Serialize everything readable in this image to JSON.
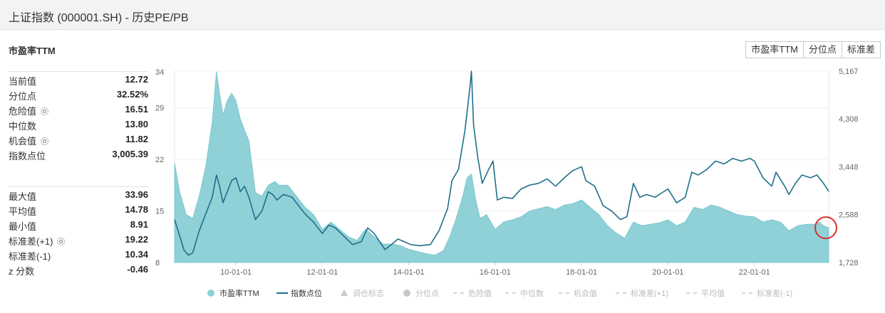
{
  "window": {
    "title": "上证指数 (000001.SH) - 历史PE/PB"
  },
  "section": {
    "title": "市盈率TTM"
  },
  "tabs": [
    "市盈率TTM",
    "分位点",
    "标准差"
  ],
  "stats_top": [
    {
      "label": "当前值",
      "value": "12.72",
      "gear": false
    },
    {
      "label": "分位点",
      "value": "32.52%",
      "gear": false
    },
    {
      "label": "危险值",
      "value": "16.51",
      "gear": true
    },
    {
      "label": "中位数",
      "value": "13.80",
      "gear": false
    },
    {
      "label": "机会值",
      "value": "11.82",
      "gear": true
    },
    {
      "label": "指数点位",
      "value": "3,005.39",
      "gear": false
    }
  ],
  "stats_bottom": [
    {
      "label": "最大值",
      "value": "33.96",
      "gear": false
    },
    {
      "label": "平均值",
      "value": "14.78",
      "gear": false
    },
    {
      "label": "最小值",
      "value": "8.91",
      "gear": false
    },
    {
      "label": "标准差(+1)",
      "value": "19.22",
      "gear": true
    },
    {
      "label": "标准差(-1)",
      "value": "10.34",
      "gear": false
    },
    {
      "label": "z 分数",
      "value": "-0.46",
      "gear": false
    }
  ],
  "colors": {
    "pe_fill": "#8fd1d6",
    "pe_line": "#7cc7cd",
    "index_line": "#1f6f8b",
    "highlight": "#d9302c"
  },
  "chart_data": {
    "type": "area",
    "left_axis": {
      "ticks": [
        34,
        29,
        22,
        15,
        8
      ],
      "min": 8,
      "max": 34
    },
    "right_axis": {
      "ticks": [
        "5,167",
        "4,308",
        "3,448",
        "2,588",
        "1,728"
      ],
      "min": 1728,
      "max": 5167
    },
    "x_tick_labels": [
      "10-01-01",
      "12-01-01",
      "14-01-01",
      "16-01-01",
      "18-01-01",
      "20-01-01",
      "22-01-01"
    ],
    "x_ticks_year": [
      2010,
      2012,
      2014,
      2016,
      2018,
      2020,
      2022
    ],
    "x_range": [
      2008.58,
      2023.72
    ],
    "series": [
      {
        "name": "市盈率TTM",
        "kind": "area",
        "axis": "left",
        "points": [
          [
            2008.58,
            21.5
          ],
          [
            2008.7,
            17.5
          ],
          [
            2008.85,
            14.5
          ],
          [
            2009.0,
            14.0
          ],
          [
            2009.15,
            17
          ],
          [
            2009.3,
            21
          ],
          [
            2009.45,
            27
          ],
          [
            2009.55,
            33.96
          ],
          [
            2009.62,
            31
          ],
          [
            2009.7,
            28
          ],
          [
            2009.8,
            30
          ],
          [
            2009.9,
            31
          ],
          [
            2010.0,
            30
          ],
          [
            2010.1,
            27.5
          ],
          [
            2010.2,
            26
          ],
          [
            2010.3,
            24.5
          ],
          [
            2010.45,
            17.5
          ],
          [
            2010.6,
            17
          ],
          [
            2010.75,
            18.5
          ],
          [
            2010.9,
            19
          ],
          [
            2011.0,
            18.5
          ],
          [
            2011.2,
            18.5
          ],
          [
            2011.4,
            17
          ],
          [
            2011.6,
            15.5
          ],
          [
            2011.8,
            14.5
          ],
          [
            2012.0,
            12.5
          ],
          [
            2012.2,
            13.5
          ],
          [
            2012.4,
            12.5
          ],
          [
            2012.6,
            11.5
          ],
          [
            2012.8,
            11
          ],
          [
            2013.0,
            12.5
          ],
          [
            2013.2,
            11.5
          ],
          [
            2013.4,
            10.5
          ],
          [
            2013.6,
            10.5
          ],
          [
            2013.8,
            10.3
          ],
          [
            2014.0,
            9.8
          ],
          [
            2014.2,
            9.5
          ],
          [
            2014.4,
            9.2
          ],
          [
            2014.6,
            9.0
          ],
          [
            2014.8,
            9.6
          ],
          [
            2014.95,
            11.5
          ],
          [
            2015.1,
            14
          ],
          [
            2015.25,
            17
          ],
          [
            2015.35,
            19.5
          ],
          [
            2015.45,
            20
          ],
          [
            2015.55,
            16.5
          ],
          [
            2015.65,
            14
          ],
          [
            2015.8,
            14.5
          ],
          [
            2016.0,
            12.5
          ],
          [
            2016.2,
            13.5
          ],
          [
            2016.4,
            13.8
          ],
          [
            2016.6,
            14.2
          ],
          [
            2016.8,
            15
          ],
          [
            2017.0,
            15.3
          ],
          [
            2017.2,
            15.6
          ],
          [
            2017.4,
            15.2
          ],
          [
            2017.6,
            15.8
          ],
          [
            2017.8,
            16
          ],
          [
            2018.0,
            16.5
          ],
          [
            2018.2,
            15.5
          ],
          [
            2018.4,
            14.5
          ],
          [
            2018.6,
            13
          ],
          [
            2018.8,
            12
          ],
          [
            2019.0,
            11.3
          ],
          [
            2019.2,
            13.5
          ],
          [
            2019.4,
            13
          ],
          [
            2019.6,
            13.2
          ],
          [
            2019.8,
            13.4
          ],
          [
            2020.0,
            13.8
          ],
          [
            2020.2,
            13
          ],
          [
            2020.4,
            13.5
          ],
          [
            2020.6,
            15.5
          ],
          [
            2020.8,
            15.2
          ],
          [
            2021.0,
            15.8
          ],
          [
            2021.2,
            15.5
          ],
          [
            2021.4,
            15
          ],
          [
            2021.6,
            14.5
          ],
          [
            2021.8,
            14.3
          ],
          [
            2022.0,
            14.2
          ],
          [
            2022.2,
            13.5
          ],
          [
            2022.4,
            13.8
          ],
          [
            2022.6,
            13.5
          ],
          [
            2022.8,
            12.3
          ],
          [
            2023.0,
            13
          ],
          [
            2023.2,
            13.2
          ],
          [
            2023.4,
            13.2
          ],
          [
            2023.5,
            13.5
          ],
          [
            2023.6,
            13
          ],
          [
            2023.72,
            12.72
          ]
        ]
      },
      {
        "name": "指数点位",
        "kind": "line",
        "axis": "right",
        "points": [
          [
            2008.58,
            2500
          ],
          [
            2008.7,
            2200
          ],
          [
            2008.8,
            1950
          ],
          [
            2008.9,
            1860
          ],
          [
            2009.0,
            1900
          ],
          [
            2009.15,
            2300
          ],
          [
            2009.3,
            2600
          ],
          [
            2009.45,
            2900
          ],
          [
            2009.55,
            3300
          ],
          [
            2009.62,
            3100
          ],
          [
            2009.7,
            2800
          ],
          [
            2009.8,
            3000
          ],
          [
            2009.9,
            3200
          ],
          [
            2010.0,
            3250
          ],
          [
            2010.1,
            3000
          ],
          [
            2010.2,
            3100
          ],
          [
            2010.3,
            2900
          ],
          [
            2010.45,
            2500
          ],
          [
            2010.6,
            2650
          ],
          [
            2010.75,
            3000
          ],
          [
            2010.85,
            2950
          ],
          [
            2010.95,
            2850
          ],
          [
            2011.1,
            2950
          ],
          [
            2011.3,
            2900
          ],
          [
            2011.45,
            2750
          ],
          [
            2011.6,
            2600
          ],
          [
            2011.8,
            2450
          ],
          [
            2012.0,
            2250
          ],
          [
            2012.15,
            2400
          ],
          [
            2012.3,
            2350
          ],
          [
            2012.5,
            2200
          ],
          [
            2012.7,
            2050
          ],
          [
            2012.9,
            2100
          ],
          [
            2013.05,
            2350
          ],
          [
            2013.2,
            2250
          ],
          [
            2013.45,
            1960
          ],
          [
            2013.6,
            2050
          ],
          [
            2013.75,
            2150
          ],
          [
            2013.9,
            2100
          ],
          [
            2014.05,
            2050
          ],
          [
            2014.25,
            2030
          ],
          [
            2014.5,
            2050
          ],
          [
            2014.7,
            2300
          ],
          [
            2014.9,
            2700
          ],
          [
            2015.0,
            3200
          ],
          [
            2015.15,
            3400
          ],
          [
            2015.3,
            4100
          ],
          [
            2015.42,
            4900
          ],
          [
            2015.45,
            5167
          ],
          [
            2015.5,
            4200
          ],
          [
            2015.6,
            3600
          ],
          [
            2015.7,
            3150
          ],
          [
            2015.85,
            3400
          ],
          [
            2015.95,
            3550
          ],
          [
            2016.05,
            2850
          ],
          [
            2016.2,
            2900
          ],
          [
            2016.4,
            2880
          ],
          [
            2016.6,
            3050
          ],
          [
            2016.8,
            3120
          ],
          [
            2017.0,
            3150
          ],
          [
            2017.2,
            3230
          ],
          [
            2017.4,
            3100
          ],
          [
            2017.6,
            3250
          ],
          [
            2017.8,
            3380
          ],
          [
            2018.0,
            3450
          ],
          [
            2018.1,
            3200
          ],
          [
            2018.3,
            3100
          ],
          [
            2018.5,
            2750
          ],
          [
            2018.7,
            2650
          ],
          [
            2018.9,
            2500
          ],
          [
            2019.05,
            2550
          ],
          [
            2019.2,
            3150
          ],
          [
            2019.35,
            2900
          ],
          [
            2019.5,
            2950
          ],
          [
            2019.7,
            2900
          ],
          [
            2019.9,
            3000
          ],
          [
            2020.0,
            3050
          ],
          [
            2020.2,
            2800
          ],
          [
            2020.4,
            2900
          ],
          [
            2020.55,
            3350
          ],
          [
            2020.7,
            3300
          ],
          [
            2020.9,
            3400
          ],
          [
            2021.1,
            3550
          ],
          [
            2021.3,
            3500
          ],
          [
            2021.5,
            3600
          ],
          [
            2021.7,
            3550
          ],
          [
            2021.9,
            3600
          ],
          [
            2022.0,
            3550
          ],
          [
            2022.2,
            3250
          ],
          [
            2022.4,
            3100
          ],
          [
            2022.5,
            3350
          ],
          [
            2022.7,
            3100
          ],
          [
            2022.8,
            2950
          ],
          [
            2022.95,
            3150
          ],
          [
            2023.1,
            3300
          ],
          [
            2023.3,
            3250
          ],
          [
            2023.45,
            3300
          ],
          [
            2023.6,
            3150
          ],
          [
            2023.72,
            3005.39
          ]
        ]
      }
    ],
    "legend": [
      "市盈率TTM",
      "指数点位",
      "调仓标志",
      "分位点",
      "危险值",
      "中位数",
      "机会值",
      "标准差(+1)",
      "平均值",
      "标准差(-1)"
    ],
    "legend_position": "bottom",
    "highlight_marker": "current value circle at end of series"
  }
}
